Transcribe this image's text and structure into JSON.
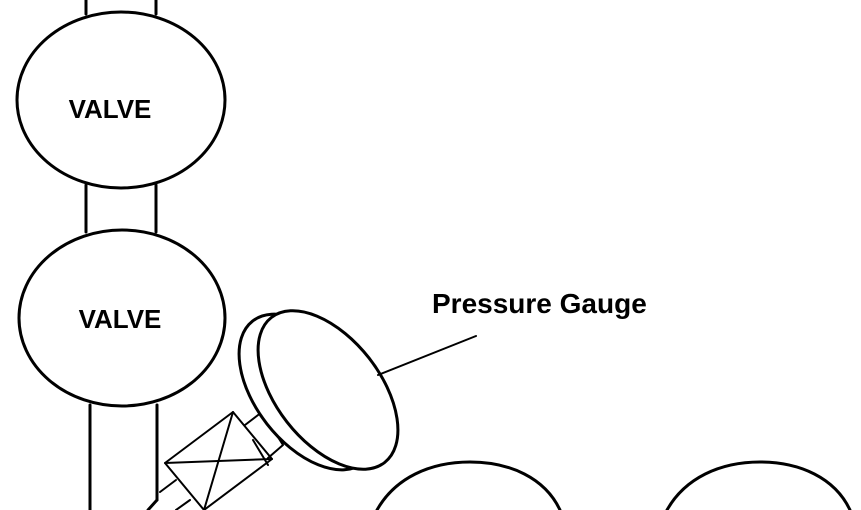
{
  "valves": [
    {
      "label": "VALVE"
    },
    {
      "label": "VALVE"
    }
  ],
  "gauge": {
    "label": "Pressure Gauge"
  }
}
